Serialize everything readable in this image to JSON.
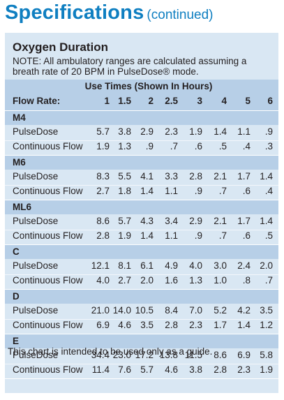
{
  "title": {
    "main": "Specifications",
    "sub": "(continued)"
  },
  "heading": "Oxygen Duration",
  "note": "NOTE: All ambulatory ranges are calculated assuming a breath rate of 20 BPM in PulseDose® mode.",
  "use_times_label": "Use Times (Shown In Hours)",
  "flow_rate_label": "Flow Rate:",
  "columns": [
    "1",
    "1.5",
    "2",
    "2.5",
    "3",
    "4",
    "5",
    "6"
  ],
  "sections": [
    {
      "name": "M4",
      "rows": [
        {
          "label": "PulseDose",
          "values": [
            "5.7",
            "3.8",
            "2.9",
            "2.3",
            "1.9",
            "1.4",
            "1.1",
            ".9"
          ]
        },
        {
          "label": "Continuous Flow",
          "values": [
            "1.9",
            "1.3",
            ".9",
            ".7",
            ".6",
            ".5",
            ".4",
            ".3"
          ]
        }
      ]
    },
    {
      "name": "M6",
      "rows": [
        {
          "label": "PulseDose",
          "values": [
            "8.3",
            "5.5",
            "4.1",
            "3.3",
            "2.8",
            "2.1",
            "1.7",
            "1.4"
          ]
        },
        {
          "label": "Continuous Flow",
          "values": [
            "2.7",
            "1.8",
            "1.4",
            "1.1",
            ".9",
            ".7",
            ".6",
            ".4"
          ]
        }
      ]
    },
    {
      "name": "ML6",
      "rows": [
        {
          "label": "PulseDose",
          "values": [
            "8.6",
            "5.7",
            "4.3",
            "3.4",
            "2.9",
            "2.1",
            "1.7",
            "1.4"
          ]
        },
        {
          "label": "Continuous Flow",
          "values": [
            "2.8",
            "1.9",
            "1.4",
            "1.1",
            ".9",
            ".7",
            ".6",
            ".5"
          ]
        }
      ]
    },
    {
      "name": "C",
      "rows": [
        {
          "label": "PulseDose",
          "values": [
            "12.1",
            "8.1",
            "6.1",
            "4.9",
            "4.0",
            "3.0",
            "2.4",
            "2.0"
          ]
        },
        {
          "label": "Continuous Flow",
          "values": [
            "4.0",
            "2.7",
            "2.0",
            "1.6",
            "1.3",
            "1.0",
            ".8",
            ".7"
          ]
        }
      ]
    },
    {
      "name": "D",
      "rows": [
        {
          "label": "PulseDose",
          "values": [
            "21.0",
            "14.0",
            "10.5",
            "8.4",
            "7.0",
            "5.2",
            "4.2",
            "3.5"
          ]
        },
        {
          "label": "Continuous Flow",
          "values": [
            "6.9",
            "4.6",
            "3.5",
            "2.8",
            "2.3",
            "1.7",
            "1.4",
            "1.2"
          ]
        }
      ]
    },
    {
      "name": "E",
      "rows": [
        {
          "label": "PulseDose",
          "values": [
            "34.4",
            "23.0",
            "17.2",
            "13.8",
            "11.5",
            "8.6",
            "6.9",
            "5.8"
          ]
        },
        {
          "label": "Continuous Flow",
          "values": [
            "11.4",
            "7.6",
            "5.7",
            "4.6",
            "3.8",
            "2.8",
            "2.3",
            "1.9"
          ]
        }
      ]
    }
  ],
  "footer": "This chart is intended to be used only as a guide.",
  "colors": {
    "title": "#0f7fc1",
    "panel": "#d9e7f3",
    "band": "#b7cfe7",
    "text": "#231f20"
  }
}
